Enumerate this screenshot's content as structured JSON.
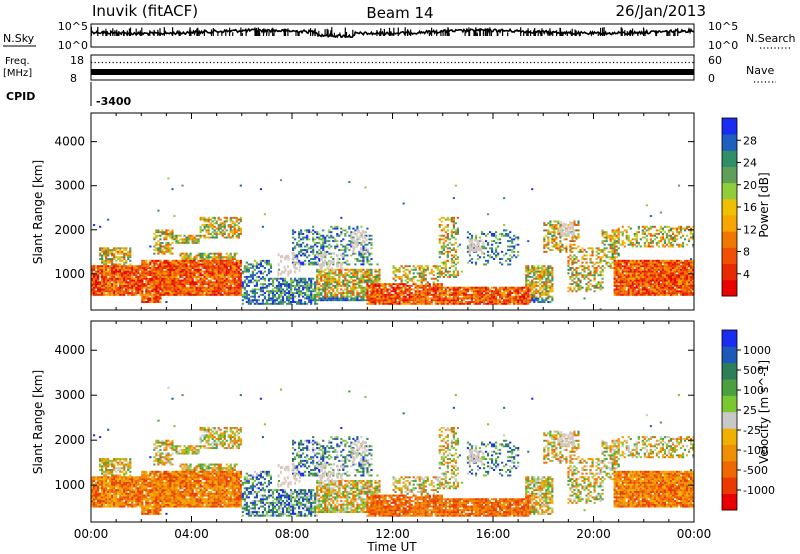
{
  "header": {
    "station": "Inuvik (fitACF)",
    "beam": "Beam 14",
    "date": "26/Jan/2013"
  },
  "noise_panel": {
    "left_label": "N.Sky",
    "right_label": "N.Search",
    "left_ticks": [
      "10^5",
      "10^0"
    ],
    "right_ticks": [
      "10^5",
      "10^0"
    ],
    "colors": {
      "trace": "#000000"
    }
  },
  "freq_panel": {
    "left_label_1": "Freq.",
    "left_label_2": "[MHz]",
    "right_label": "Nave",
    "left_ticks": [
      "18",
      "8"
    ],
    "right_ticks": [
      "60",
      "0"
    ]
  },
  "cpid": {
    "label": "CPID",
    "value": "-3400"
  },
  "chart_data": [
    {
      "type": "heatmap",
      "title": "",
      "ylabel": "Slant Range [km]",
      "ylim": [
        180,
        4650
      ],
      "yticks": [
        "1000",
        "2000",
        "3000",
        "4000"
      ],
      "xlim": [
        0,
        24
      ],
      "colorbar": {
        "label": "Power [dB]",
        "ticks": [
          "4",
          "8",
          "12",
          "16",
          "20",
          "24",
          "28"
        ],
        "colors": [
          "#1a2cf0",
          "#1e5fbf",
          "#2f8f66",
          "#5f9f58",
          "#8fce3a",
          "#f0c000",
          "#f7a500",
          "#f07800",
          "#f05000",
          "#e82a00",
          "#ea0000"
        ]
      },
      "value_range": [
        0,
        32
      ]
    },
    {
      "type": "heatmap",
      "title": "",
      "ylabel": "Slant Range [km]",
      "ylim": [
        180,
        4650
      ],
      "yticks": [
        "1000",
        "2000",
        "3000",
        "4000"
      ],
      "xlim": [
        0,
        24
      ],
      "colorbar": {
        "label": "Velocity [m s^-1]",
        "ticks": [
          "1000",
          "500",
          "100",
          "25",
          "-25",
          "-100",
          "-500",
          "-1000"
        ],
        "colors": [
          "#1a2cf0",
          "#1d5ab8",
          "#2e7e5a",
          "#4aa040",
          "#7ac830",
          "#c8c8c8",
          "#f0b000",
          "#f09000",
          "#f06800",
          "#ea3a00",
          "#ea0000"
        ]
      }
    }
  ],
  "x_axis": {
    "ticks": [
      "00:00",
      "04:00",
      "08:00",
      "12:00",
      "16:00",
      "20:00",
      "00:00"
    ],
    "label": "Time UT"
  }
}
